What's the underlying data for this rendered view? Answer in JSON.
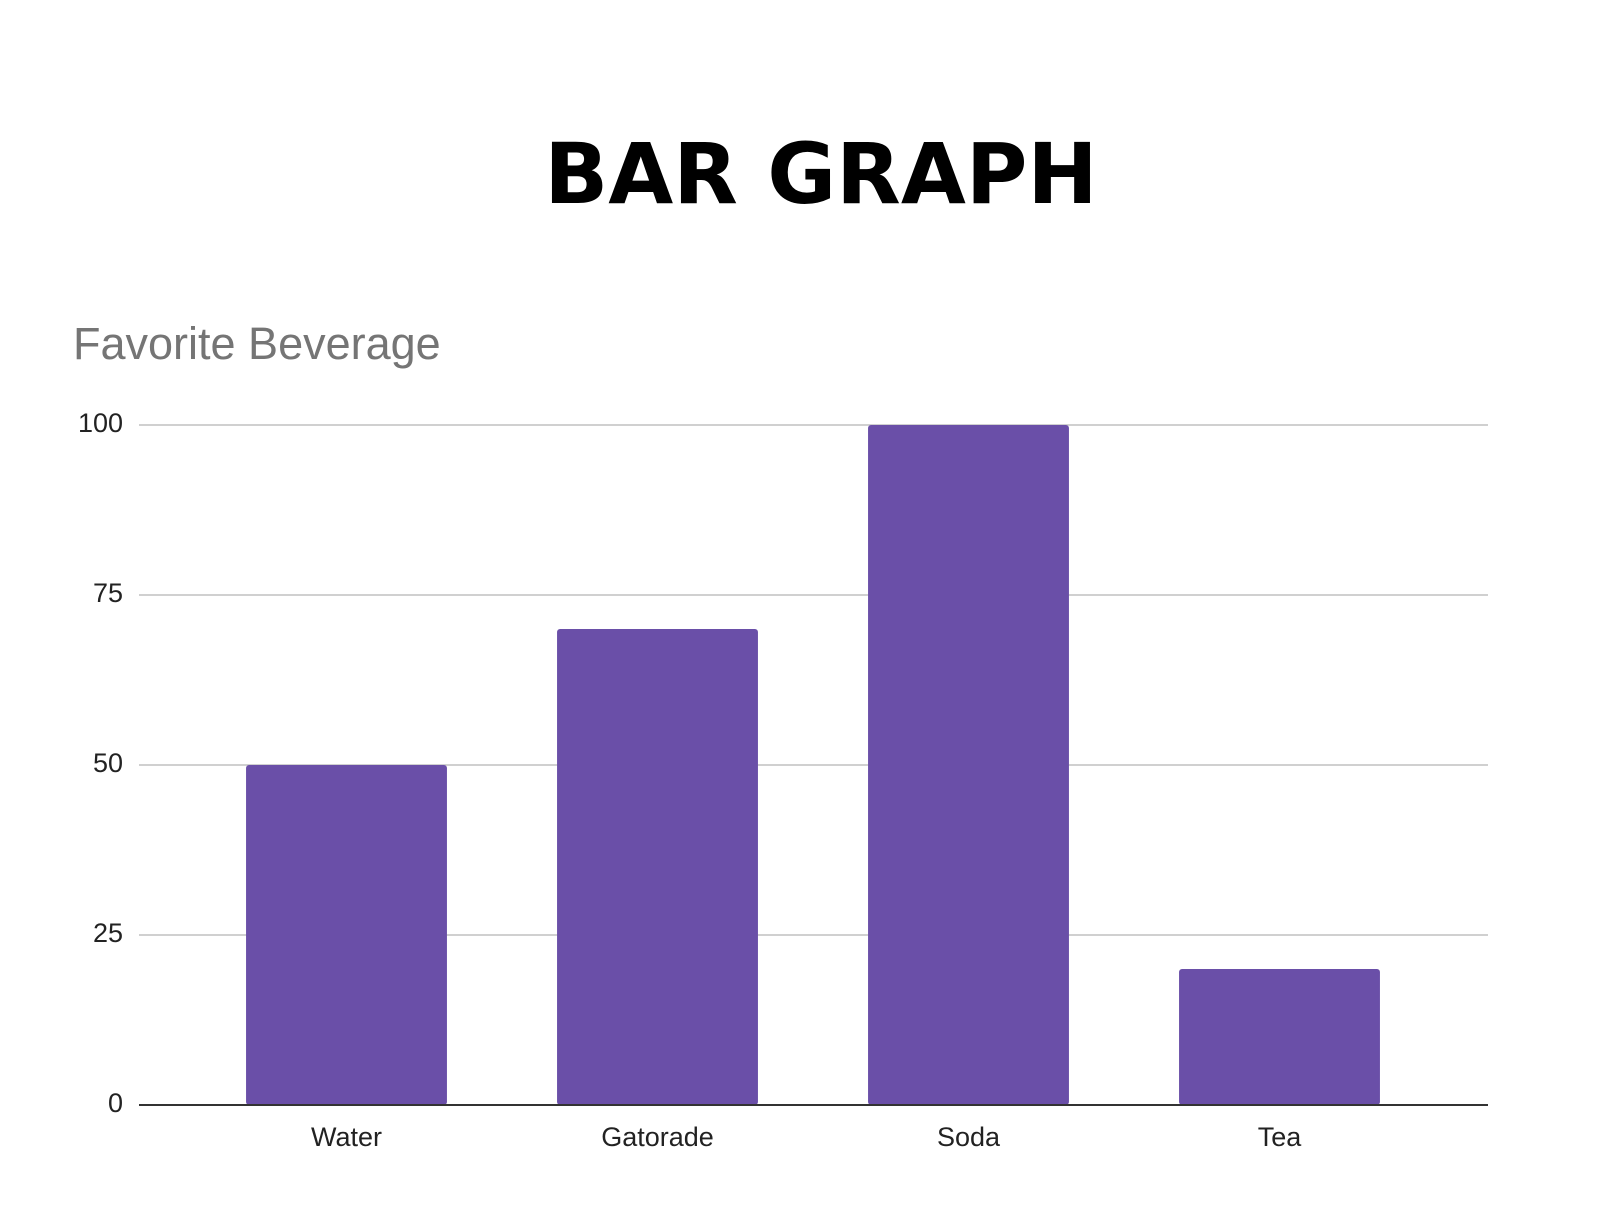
{
  "chart_data": {
    "type": "bar",
    "title": "BAR GRAPH",
    "subtitle": "Favorite Beverage",
    "categories": [
      "Water",
      "Gatorade",
      "Soda",
      "Tea"
    ],
    "values": [
      50,
      70,
      100,
      20
    ],
    "color": "#6a4fa8",
    "ylim": [
      0,
      100
    ],
    "yticks": [
      0,
      25,
      50,
      75,
      100
    ],
    "grid": true
  }
}
